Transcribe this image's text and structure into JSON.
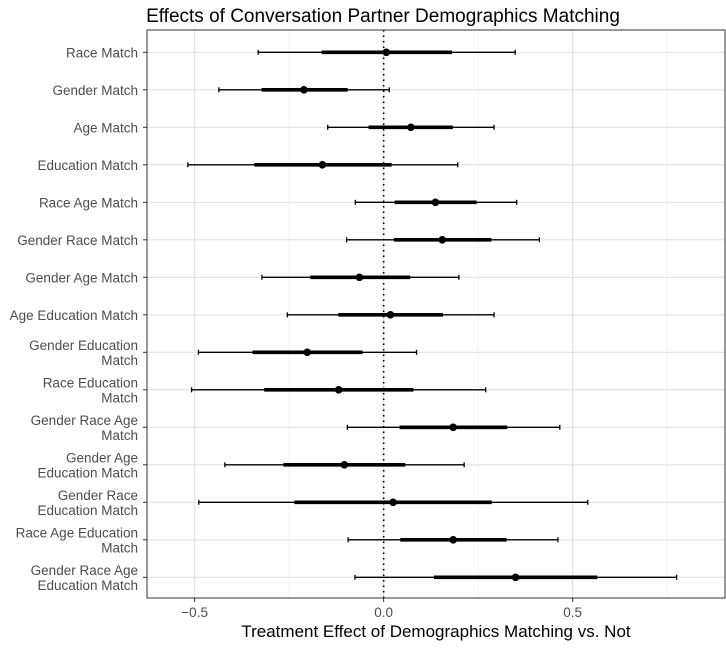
{
  "chart_data": {
    "type": "coefficient-plot",
    "title": "Effects of Conversation Partner Demographics Matching",
    "xlabel": "Treatment Effect of Demographics Matching vs. Not",
    "ylabel": "",
    "xlim": [
      -0.626,
      0.903
    ],
    "xticks": [
      -0.5,
      0.0,
      0.5
    ],
    "xtick_labels": [
      "−0.5",
      "0.0",
      "0.5"
    ],
    "minor_gridlines": [
      -0.25,
      0.25,
      0.75
    ],
    "reference_line": 0,
    "grid": true,
    "rows": [
      {
        "label": [
          "Race Match"
        ],
        "estimate": 0.007,
        "ci_inner": [
          -0.164,
          0.181
        ],
        "ci_outer": [
          -0.332,
          0.348
        ]
      },
      {
        "label": [
          "Gender Match"
        ],
        "estimate": -0.211,
        "ci_inner": [
          -0.323,
          -0.095
        ],
        "ci_outer": [
          -0.436,
          0.015
        ]
      },
      {
        "label": [
          "Age Match"
        ],
        "estimate": 0.072,
        "ci_inner": [
          -0.04,
          0.183
        ],
        "ci_outer": [
          -0.148,
          0.292
        ]
      },
      {
        "label": [
          "Education Match"
        ],
        "estimate": -0.162,
        "ci_inner": [
          -0.342,
          0.021
        ],
        "ci_outer": [
          -0.518,
          0.196
        ]
      },
      {
        "label": [
          "Race Age Match"
        ],
        "estimate": 0.137,
        "ci_inner": [
          0.029,
          0.246
        ],
        "ci_outer": [
          -0.075,
          0.352
        ]
      },
      {
        "label": [
          "Gender Race Match"
        ],
        "estimate": 0.155,
        "ci_inner": [
          0.027,
          0.285
        ],
        "ci_outer": [
          -0.098,
          0.412
        ]
      },
      {
        "label": [
          "Gender Age Match"
        ],
        "estimate": -0.064,
        "ci_inner": [
          -0.194,
          0.07
        ],
        "ci_outer": [
          -0.322,
          0.199
        ]
      },
      {
        "label": [
          "Age Education Match"
        ],
        "estimate": 0.018,
        "ci_inner": [
          -0.12,
          0.157
        ],
        "ci_outer": [
          -0.255,
          0.292
        ]
      },
      {
        "label": [
          "Gender Education",
          "Match"
        ],
        "estimate": -0.202,
        "ci_inner": [
          -0.347,
          -0.056
        ],
        "ci_outer": [
          -0.49,
          0.087
        ]
      },
      {
        "label": [
          "Race Education",
          "Match"
        ],
        "estimate": -0.119,
        "ci_inner": [
          -0.316,
          0.079
        ],
        "ci_outer": [
          -0.508,
          0.27
        ]
      },
      {
        "label": [
          "Gender Race Age",
          "Match"
        ],
        "estimate": 0.184,
        "ci_inner": [
          0.042,
          0.327
        ],
        "ci_outer": [
          -0.096,
          0.466
        ]
      },
      {
        "label": [
          "Gender Age",
          "Education Match"
        ],
        "estimate": -0.104,
        "ci_inner": [
          -0.265,
          0.057
        ],
        "ci_outer": [
          -0.42,
          0.213
        ]
      },
      {
        "label": [
          "Gender Race",
          "Education Match"
        ],
        "estimate": 0.025,
        "ci_inner": [
          -0.236,
          0.286
        ],
        "ci_outer": [
          -0.489,
          0.54
        ]
      },
      {
        "label": [
          "Race Age Education",
          "Match"
        ],
        "estimate": 0.184,
        "ci_inner": [
          0.044,
          0.325
        ],
        "ci_outer": [
          -0.094,
          0.461
        ]
      },
      {
        "label": [
          "Gender Race Age",
          "Education Match"
        ],
        "estimate": 0.349,
        "ci_inner": [
          0.133,
          0.565
        ],
        "ci_outer": [
          -0.076,
          0.775
        ]
      }
    ]
  }
}
